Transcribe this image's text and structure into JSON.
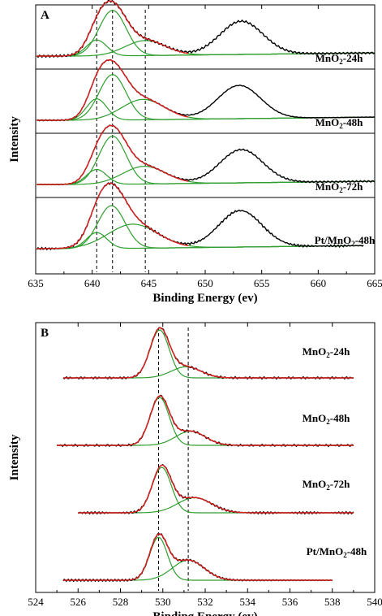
{
  "chart_data": [
    {
      "type": "line",
      "panel_label": "A",
      "xlabel": "Binding Energy (ev)",
      "ylabel": "Intensity",
      "xlim": [
        635,
        665
      ],
      "x_ticks": [
        "635",
        "640",
        "645",
        "650",
        "655",
        "660",
        "665"
      ],
      "reference_lines_x": [
        640.4,
        641.8,
        644.7
      ],
      "colors": {
        "measured": "#000000",
        "fit": "#e02020",
        "component": "#2e9e2e"
      },
      "samples": [
        {
          "label_main": "MnO",
          "label_sub": "2",
          "label_rest": "-24h",
          "components": [
            {
              "center": 640.4,
              "height": 0.3,
              "width": 0.9
            },
            {
              "center": 641.8,
              "height": 0.85,
              "width": 1.2
            },
            {
              "center": 644.7,
              "height": 0.28,
              "width": 1.8
            }
          ],
          "satellite": {
            "center": 653.2,
            "height": 0.62,
            "width": 1.9
          },
          "x_end": 665
        },
        {
          "label_main": "MnO",
          "label_sub": "2",
          "label_rest": "-48h",
          "components": [
            {
              "center": 640.4,
              "height": 0.4,
              "width": 0.9
            },
            {
              "center": 641.8,
              "height": 0.85,
              "width": 1.2
            },
            {
              "center": 644.5,
              "height": 0.38,
              "width": 1.9
            }
          ],
          "satellite": {
            "center": 653.0,
            "height": 0.62,
            "width": 1.9
          },
          "x_end": 665
        },
        {
          "label_main": "MnO",
          "label_sub": "2",
          "label_rest": "-72h",
          "components": [
            {
              "center": 640.4,
              "height": 0.28,
              "width": 0.9
            },
            {
              "center": 641.8,
              "height": 0.9,
              "width": 1.2
            },
            {
              "center": 644.6,
              "height": 0.33,
              "width": 1.9
            }
          ],
          "satellite": {
            "center": 653.2,
            "height": 0.62,
            "width": 1.9
          },
          "x_end": 665
        },
        {
          "label_main": "Pt/MnO",
          "label_sub": "2",
          "label_rest": "-48h",
          "components": [
            {
              "center": 640.4,
              "height": 0.3,
              "width": 0.9
            },
            {
              "center": 641.7,
              "height": 0.8,
              "width": 1.2
            },
            {
              "center": 643.6,
              "height": 0.45,
              "width": 2.2
            }
          ],
          "satellite": {
            "center": 653.1,
            "height": 0.68,
            "width": 1.9
          },
          "x_end": 664
        }
      ]
    },
    {
      "type": "line",
      "panel_label": "B",
      "xlabel": "Binding Energy (ev)",
      "ylabel": "Intensity",
      "xlim": [
        524,
        540
      ],
      "x_ticks": [
        "524",
        "526",
        "528",
        "530",
        "532",
        "534",
        "536",
        "538",
        "540"
      ],
      "reference_lines_x": [
        529.8,
        531.2
      ],
      "colors": {
        "measured": "#000000",
        "fit": "#e02020",
        "component": "#2e9e2e"
      },
      "samples": [
        {
          "label_main": "MnO",
          "label_sub": "2",
          "label_rest": "-24h",
          "components": [
            {
              "center": 529.85,
              "height": 0.95,
              "width": 0.45
            },
            {
              "center": 531.1,
              "height": 0.22,
              "width": 0.7
            }
          ],
          "x_start": 525.3,
          "x_end": 539
        },
        {
          "label_main": "MnO",
          "label_sub": "2",
          "label_rest": "-48h",
          "components": [
            {
              "center": 529.85,
              "height": 0.95,
              "width": 0.45
            },
            {
              "center": 531.3,
              "height": 0.28,
              "width": 0.7
            }
          ],
          "x_start": 525.0,
          "x_end": 539
        },
        {
          "label_main": "MnO",
          "label_sub": "2",
          "label_rest": "-72h",
          "components": [
            {
              "center": 529.95,
              "height": 0.9,
              "width": 0.45
            },
            {
              "center": 531.5,
              "height": 0.3,
              "width": 0.8
            }
          ],
          "x_start": 526.0,
          "x_end": 539
        },
        {
          "label_main": "Pt/MnO",
          "label_sub": "2",
          "label_rest": "-48h",
          "components": [
            {
              "center": 529.8,
              "height": 0.85,
              "width": 0.42
            },
            {
              "center": 531.2,
              "height": 0.4,
              "width": 0.75
            }
          ],
          "x_start": 525.3,
          "x_end": 538
        }
      ]
    }
  ]
}
